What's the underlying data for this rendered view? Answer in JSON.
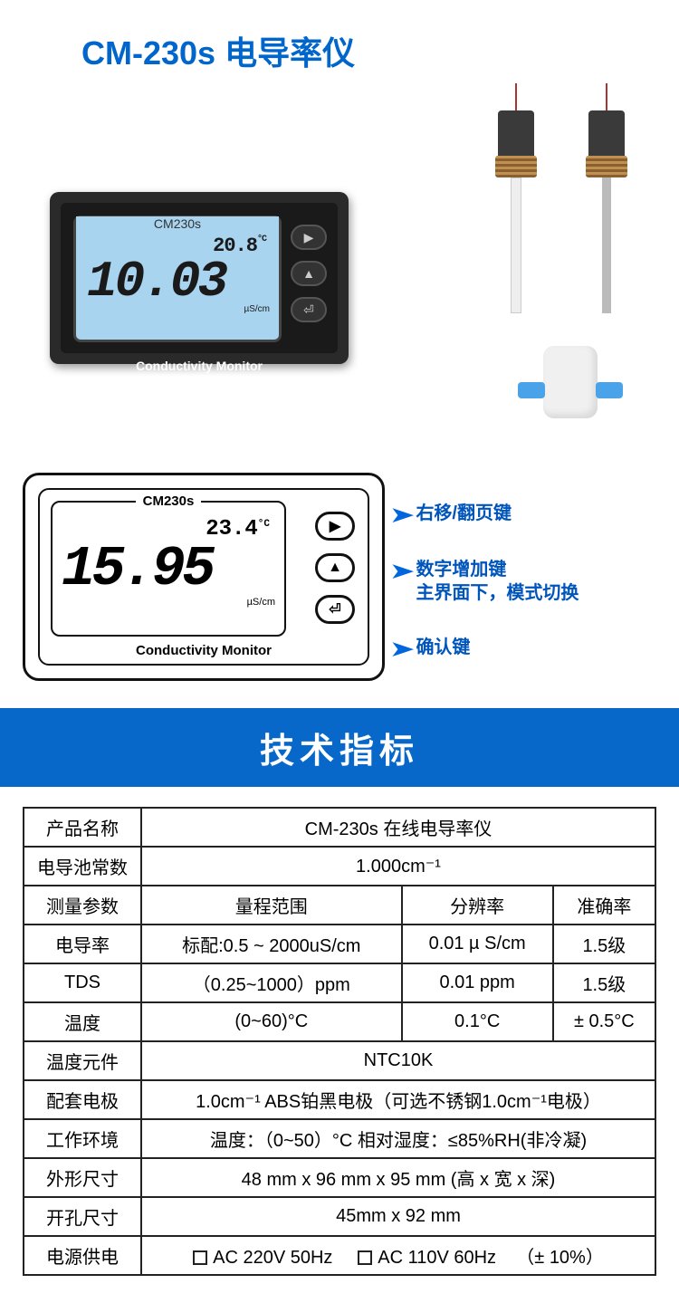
{
  "title": "CM-230s 电导率仪",
  "device": {
    "model": "CM230s",
    "temp": "20.8",
    "temp_unit": "°C",
    "reading": "10.03",
    "unit": "µS/cm",
    "label": "Conductivity Monitor",
    "btn1_glyph": "▶",
    "btn2_glyph": "▲",
    "btn3_glyph": "⏎"
  },
  "diagram": {
    "model": "CM230s",
    "temp": "23.4",
    "temp_unit": "°C",
    "reading": "15.95",
    "unit": "µS/cm",
    "label": "Conductivity Monitor",
    "btn1_glyph": "▶",
    "btn2_glyph": "▲",
    "btn3_glyph": "⏎"
  },
  "callouts": {
    "c1": "右移/翻页键",
    "c2a": "数字增加键",
    "c2b": "主界面下，模式切换",
    "c3": "确认键"
  },
  "section_header": "技术指标",
  "spec": {
    "rows": {
      "name_label": "产品名称",
      "name_value": "CM-230s 在线电导率仪",
      "cell_label": "电导池常数",
      "cell_value": "1.000cm⁻¹",
      "param_label": "测量参数",
      "range_header": "量程范围",
      "res_header": "分辨率",
      "acc_header": "准确率",
      "cond_label": "电导率",
      "cond_range": "标配:0.5 ~ 2000uS/cm",
      "cond_res": "0.01 µ S/cm",
      "cond_acc": "1.5级",
      "tds_label": "TDS",
      "tds_range": "（0.25~1000）ppm",
      "tds_res": "0.01 ppm",
      "tds_acc": "1.5级",
      "temp_label": "温度",
      "temp_range": "(0~60)°C",
      "temp_res": "0.1°C",
      "temp_acc": "± 0.5°C",
      "tempel_label": "温度元件",
      "tempel_value": "NTC10K",
      "elec_label": "配套电极",
      "elec_value": "1.0cm⁻¹ ABS铂黑电极（可选不锈钢1.0cm⁻¹电极）",
      "env_label": "工作环境",
      "env_value": "温度：（0~50）°C 相对湿度：≤85%RH(非冷凝)",
      "dim_label": "外形尺寸",
      "dim_value": "48 mm x 96 mm x 95 mm (高 x 宽 x 深)",
      "cut_label": "开孔尺寸",
      "cut_value": "45mm x 92 mm",
      "power_label": "电源供电",
      "power_opt1": "AC 220V 50Hz",
      "power_opt2": "AC 110V 60Hz",
      "power_tol": "（± 10%）"
    }
  },
  "colors": {
    "title": "#0066cc",
    "header_bg": "#0868c9",
    "callout": "#0055bb",
    "lcd_bg": "#a8d4f0",
    "device_body": "#2a2a2a",
    "border": "#222222"
  }
}
